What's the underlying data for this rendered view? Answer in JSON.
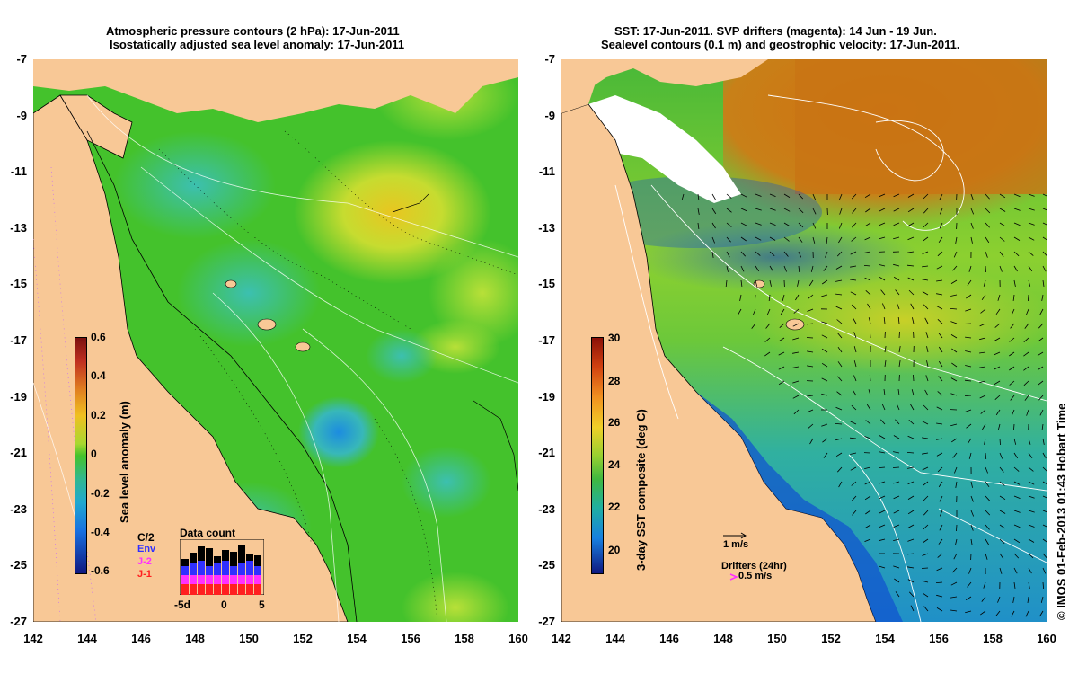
{
  "left_panel": {
    "title_line1": "Atmospheric pressure contours (2 hPa): 17-Jun-2011",
    "title_line2": "Isostatically adjusted sea level anomaly: 17-Jun-2011",
    "colorbar_label": "Sea level anomaly (m)",
    "colorbar_ticks": [
      "0.6",
      "0.4",
      "0.2",
      "0",
      "-0.2",
      "-0.4",
      "-0.6"
    ],
    "data_count": {
      "title": "Data count",
      "legend": [
        "Env",
        "J-2",
        "J-1"
      ],
      "legend_colors": [
        "#3030ff",
        "#ff30ff",
        "#ff2020"
      ],
      "overlap_label": "C/2",
      "x_ticks": [
        "-5d",
        "0",
        "5"
      ]
    }
  },
  "right_panel": {
    "title_line1": "SST: 17-Jun-2011. SVP drifters (magenta): 14 Jun - 19 Jun.",
    "title_line2": "Sealevel contours (0.1 m) and geostrophic velocity: 17-Jun-2011.",
    "colorbar_label": "3-day SST composite (deg C)",
    "colorbar_ticks": [
      "30",
      "28",
      "26",
      "24",
      "22",
      "20"
    ],
    "velocity_key": "1 m/s",
    "drifters_label": "Drifters (24hr)",
    "drifter_speed": "0.5 m/s"
  },
  "y_axis_ticks": [
    "-7",
    "-9",
    "-11",
    "-13",
    "-15",
    "-17",
    "-19",
    "-21",
    "-23",
    "-25",
    "-27"
  ],
  "x_axis_ticks": [
    "142",
    "144",
    "146",
    "148",
    "150",
    "152",
    "154",
    "156",
    "158",
    "160"
  ],
  "credit": "© IMOS 01-Feb-2013 01:43 Hobart Time",
  "colors": {
    "land": "#f8c896",
    "sla_base": "#44c22c",
    "sst_base": "#3cb84a"
  }
}
